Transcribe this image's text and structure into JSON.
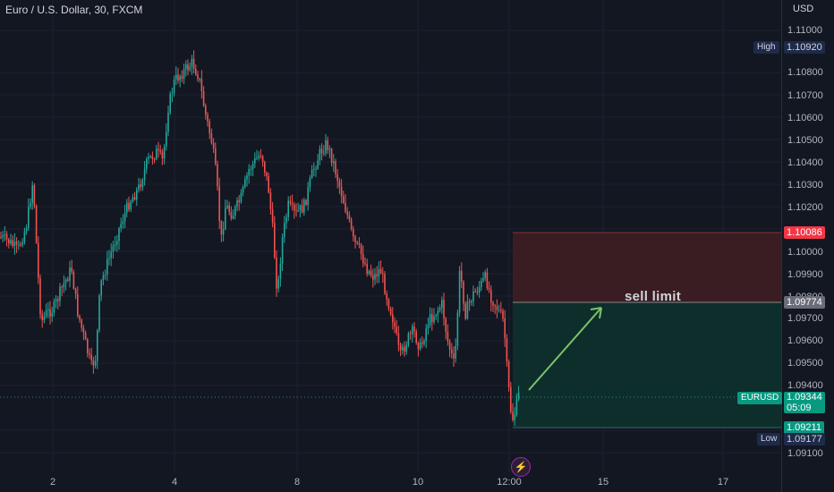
{
  "header": {
    "title": "Euro / U.S. Dollar, 30, FXCM",
    "currency": "USD"
  },
  "price_axis": {
    "ticks": [
      "1.11000",
      "1.10800",
      "1.10700",
      "1.10600",
      "1.10500",
      "1.10400",
      "1.10300",
      "1.10200",
      "1.10000",
      "1.09900",
      "1.09800",
      "1.09700",
      "1.09600",
      "1.09500",
      "1.09400",
      "1.09100"
    ]
  },
  "time_axis": {
    "ticks": [
      "2",
      "4",
      "8",
      "10",
      "12:00",
      "15",
      "17"
    ]
  },
  "labels": {
    "high": {
      "label": "High",
      "value": "1.10920"
    },
    "low": {
      "label": "Low",
      "value": "1.09177"
    },
    "stop": {
      "value": "1.10086"
    },
    "entry": {
      "value": "1.09774"
    },
    "current": {
      "symbol": "EURUSD",
      "value": "1.09344",
      "countdown": "05:09"
    },
    "target": {
      "value": "1.09211"
    }
  },
  "annotation": {
    "text": "sell limit"
  },
  "events": {
    "icon": "lightning-icon"
  },
  "colors": {
    "bg": "#131722",
    "up": "#26a69a",
    "down": "#ef5350",
    "stop_zone": "#3a1d22",
    "profit_zone": "#0e2e2b",
    "arrow": "#7cc36b"
  }
}
